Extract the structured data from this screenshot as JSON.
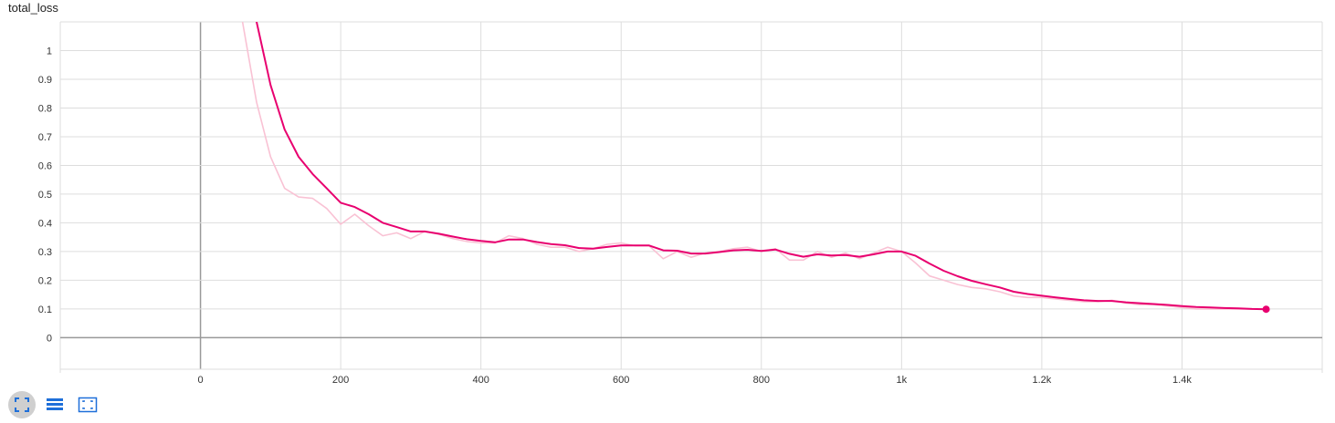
{
  "chart_title": "total_loss",
  "colors": {
    "smoothed_line": "#e8006f",
    "raw_line": "#f9c2d4",
    "grid": "#dddddd",
    "zero_axis": "#999999",
    "toolbar_icon": "#1e6fd9"
  },
  "toolbar": {
    "icons": [
      "fit-to-data-icon",
      "toggle-y-log-scale-icon",
      "fit-domain-icon"
    ]
  },
  "chart_data": {
    "type": "line",
    "title": "total_loss",
    "xlabel": "",
    "ylabel": "",
    "xlim": [
      -200,
      1600
    ],
    "ylim": [
      -0.11,
      1.1
    ],
    "x_ticks": [
      0,
      200,
      400,
      600,
      800,
      1000,
      1200,
      1400
    ],
    "x_tick_labels": [
      "0",
      "200",
      "400",
      "600",
      "800",
      "1k",
      "1.2k",
      "1.4k"
    ],
    "y_ticks": [
      0,
      0.1,
      0.2,
      0.3,
      0.4,
      0.5,
      0.6,
      0.7,
      0.8,
      0.9,
      1
    ],
    "y_tick_labels": [
      "0",
      "0.1",
      "0.2",
      "0.3",
      "0.4",
      "0.5",
      "0.6",
      "0.7",
      "0.8",
      "0.9",
      "1"
    ],
    "grid": true,
    "legend": "none",
    "series": [
      {
        "kind": "raw",
        "x": [
          40,
          60,
          80,
          100,
          120,
          140,
          160,
          180,
          200,
          220,
          240,
          260,
          280,
          300,
          320,
          340,
          360,
          380,
          400,
          420,
          440,
          460,
          480,
          500,
          520,
          540,
          560,
          580,
          600,
          620,
          640,
          660,
          680,
          700,
          720,
          740,
          760,
          780,
          800,
          820,
          840,
          860,
          880,
          900,
          920,
          940,
          960,
          980,
          1000,
          1020,
          1040,
          1060,
          1080,
          1100,
          1120,
          1140,
          1160,
          1180,
          1200,
          1220,
          1240,
          1260,
          1280,
          1300,
          1320,
          1340,
          1360,
          1380,
          1400,
          1420,
          1440,
          1460,
          1480,
          1500,
          1520
        ],
        "y": [
          1.4,
          1.1,
          0.82,
          0.63,
          0.52,
          0.49,
          0.485,
          0.45,
          0.395,
          0.43,
          0.39,
          0.355,
          0.365,
          0.345,
          0.37,
          0.36,
          0.345,
          0.335,
          0.33,
          0.33,
          0.355,
          0.345,
          0.325,
          0.315,
          0.315,
          0.3,
          0.31,
          0.325,
          0.33,
          0.32,
          0.32,
          0.275,
          0.3,
          0.28,
          0.295,
          0.3,
          0.31,
          0.315,
          0.3,
          0.31,
          0.27,
          0.27,
          0.3,
          0.28,
          0.295,
          0.275,
          0.295,
          0.315,
          0.3,
          0.26,
          0.215,
          0.2,
          0.185,
          0.175,
          0.17,
          0.16,
          0.145,
          0.14,
          0.14,
          0.135,
          0.13,
          0.125,
          0.125,
          0.13,
          0.12,
          0.115,
          0.115,
          0.11,
          0.105,
          0.1,
          0.1,
          0.1,
          0.1,
          0.1,
          0.1
        ]
      },
      {
        "kind": "smoothed",
        "x": [
          60,
          80,
          100,
          120,
          140,
          160,
          180,
          200,
          220,
          240,
          260,
          280,
          300,
          320,
          340,
          360,
          380,
          400,
          420,
          440,
          460,
          480,
          500,
          520,
          540,
          560,
          580,
          600,
          620,
          640,
          660,
          680,
          700,
          720,
          740,
          760,
          780,
          800,
          820,
          840,
          860,
          880,
          900,
          920,
          940,
          960,
          980,
          1000,
          1020,
          1040,
          1060,
          1080,
          1100,
          1120,
          1140,
          1160,
          1180,
          1200,
          1220,
          1240,
          1260,
          1280,
          1300,
          1320,
          1340,
          1360,
          1380,
          1400,
          1420,
          1440,
          1460,
          1480,
          1500,
          1520
        ],
        "y": [
          1.3,
          1.1,
          0.88,
          0.725,
          0.63,
          0.57,
          0.52,
          0.47,
          0.455,
          0.43,
          0.4,
          0.385,
          0.37,
          0.37,
          0.362,
          0.352,
          0.343,
          0.337,
          0.332,
          0.342,
          0.342,
          0.333,
          0.326,
          0.322,
          0.312,
          0.31,
          0.316,
          0.321,
          0.321,
          0.321,
          0.304,
          0.303,
          0.293,
          0.293,
          0.298,
          0.304,
          0.306,
          0.302,
          0.307,
          0.292,
          0.282,
          0.29,
          0.286,
          0.288,
          0.282,
          0.29,
          0.3,
          0.3,
          0.285,
          0.258,
          0.233,
          0.214,
          0.198,
          0.186,
          0.175,
          0.16,
          0.152,
          0.146,
          0.14,
          0.135,
          0.13,
          0.128,
          0.128,
          0.123,
          0.12,
          0.117,
          0.114,
          0.11,
          0.107,
          0.105,
          0.103,
          0.102,
          0.1,
          0.099
        ]
      }
    ]
  }
}
